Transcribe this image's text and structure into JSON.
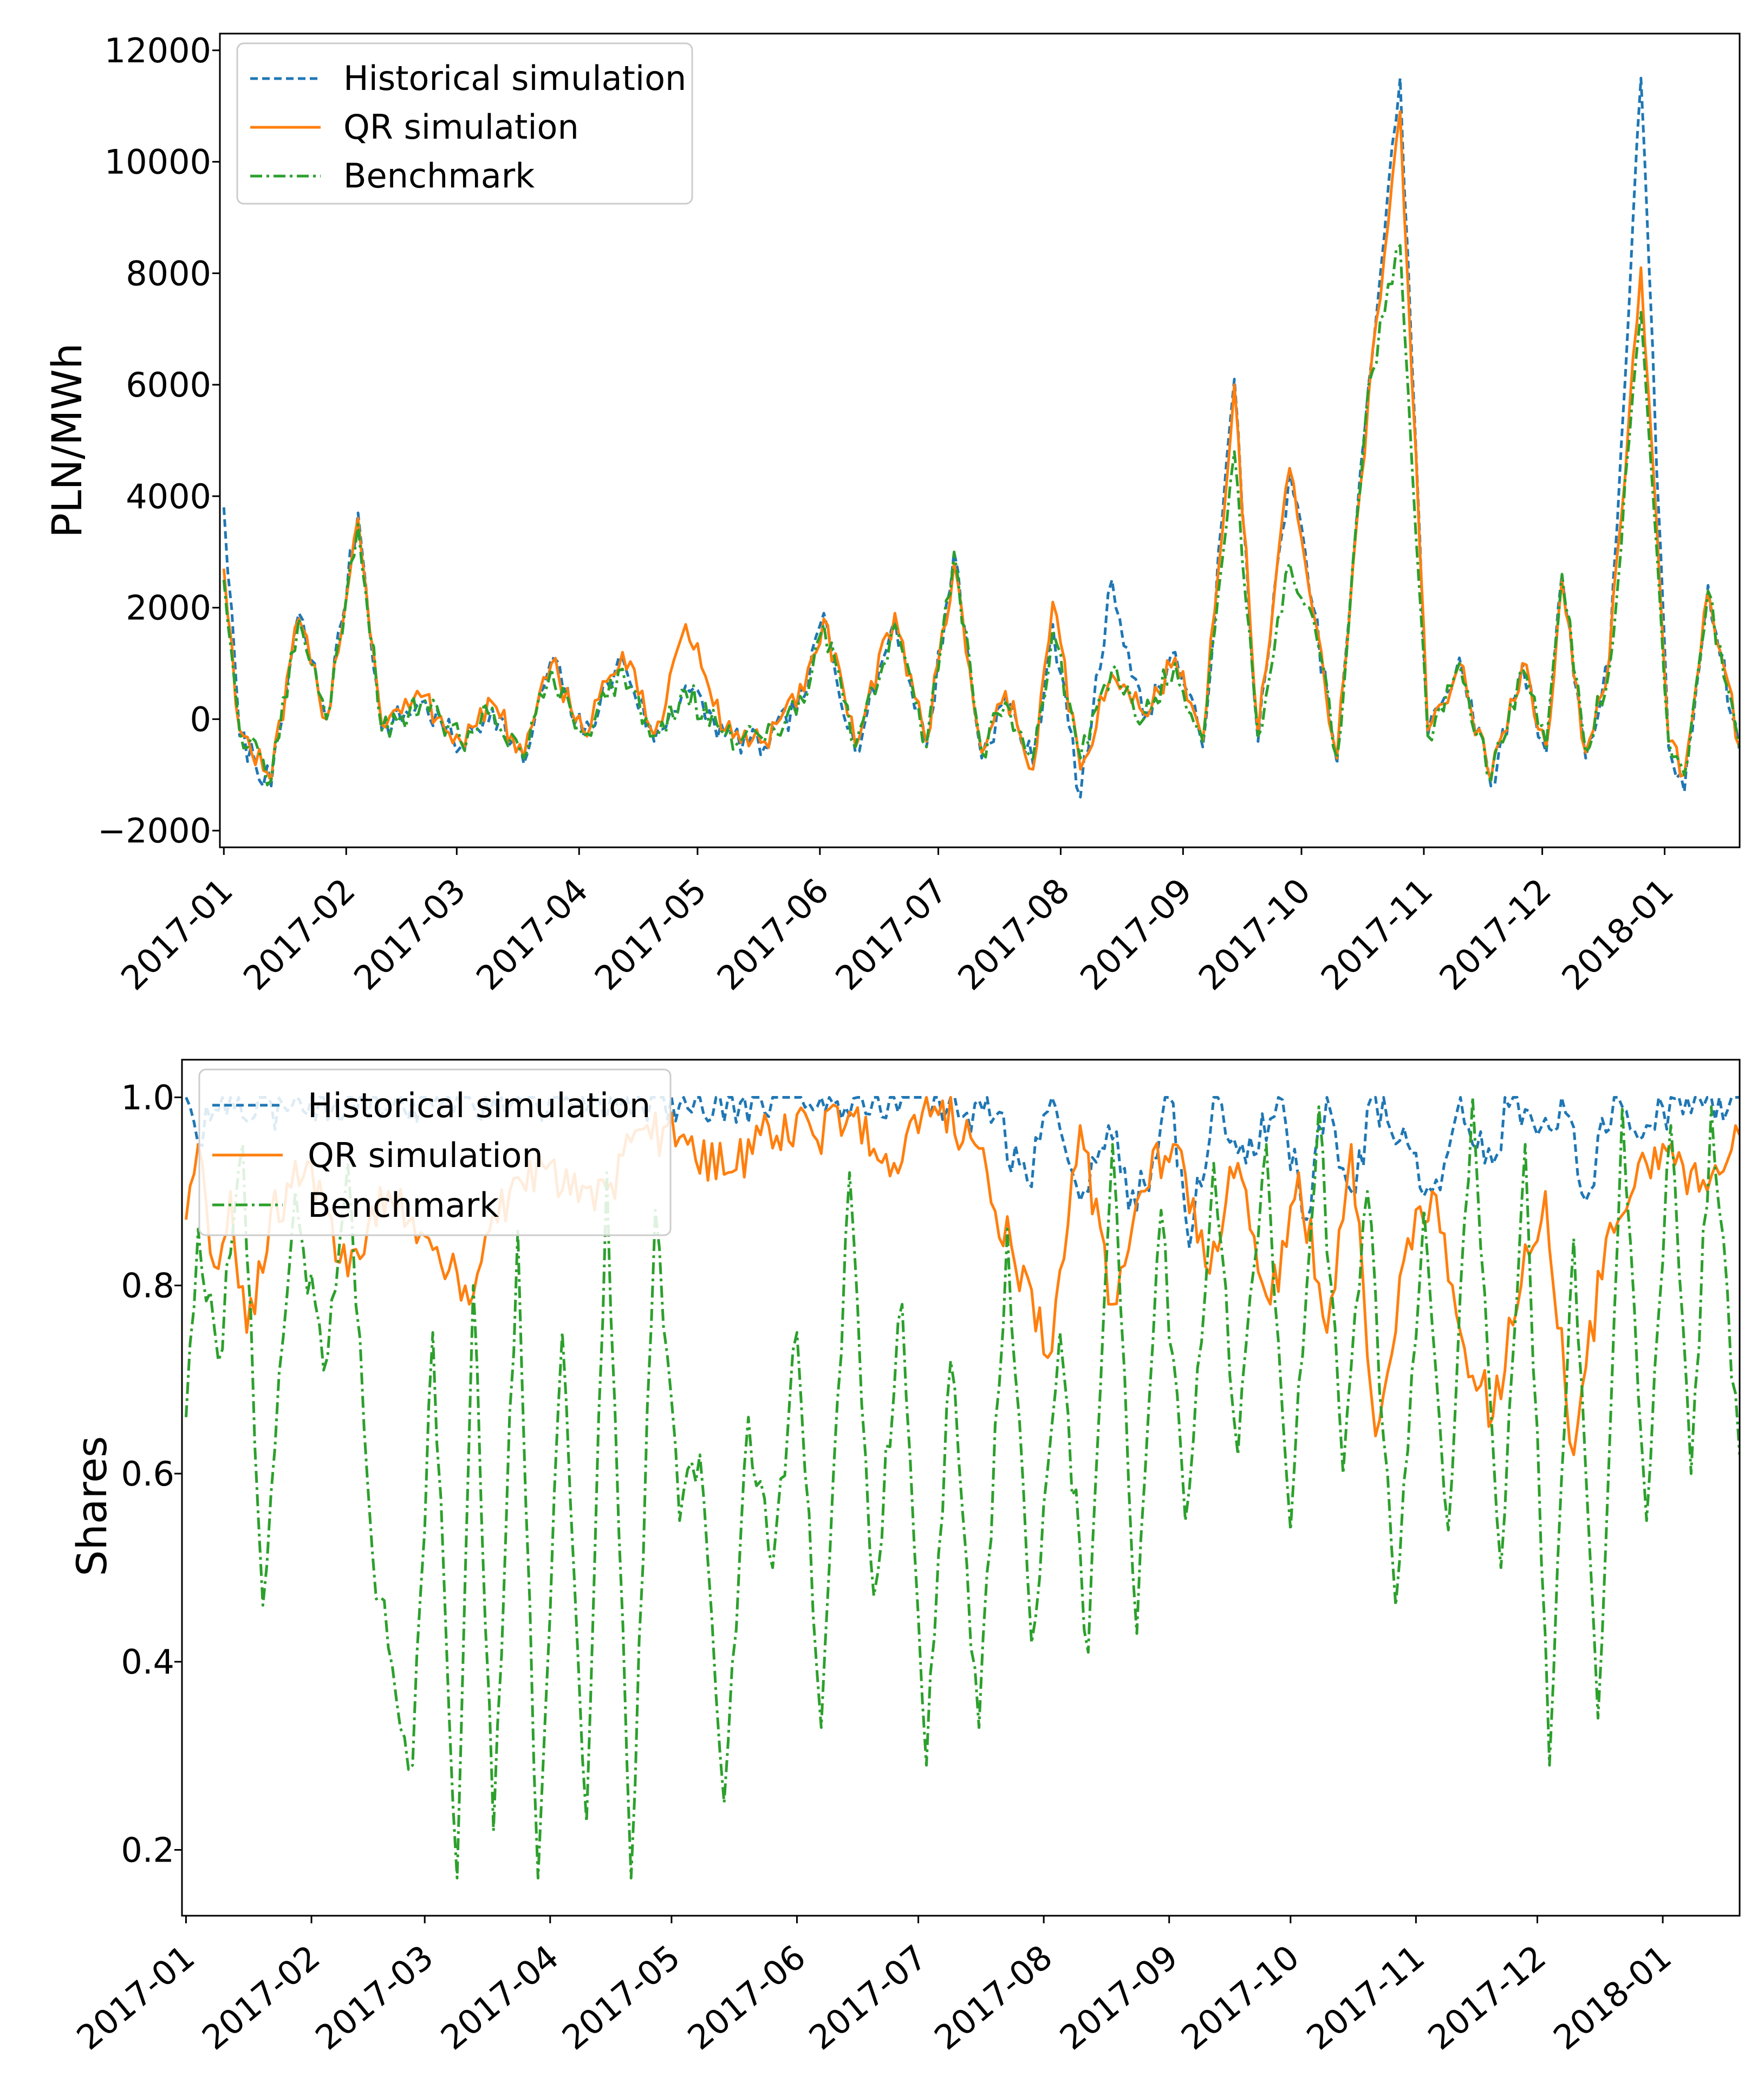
{
  "colors": {
    "historical": "#1f77b4",
    "qr": "#ff7f0e",
    "benchmark": "#2ca02c",
    "frame": "#000000",
    "legend_border": "#cccccc",
    "background": "#ffffff"
  },
  "legend": {
    "items": [
      {
        "label": "Historical simulation",
        "style": "dashed",
        "color_key": "historical"
      },
      {
        "label": "QR simulation",
        "style": "solid",
        "color_key": "qr"
      },
      {
        "label": "Benchmark",
        "style": "dashdot",
        "color_key": "benchmark"
      }
    ],
    "placement": "upper-left"
  },
  "chart_data": [
    {
      "type": "line",
      "ylabel": "PLN/MWh",
      "xlabel": "",
      "xlim": [
        "2016-12-31",
        "2018-01-20"
      ],
      "ylim": [
        -2300,
        12300
      ],
      "yticks": [
        -2000,
        0,
        2000,
        4000,
        6000,
        8000,
        10000,
        12000
      ],
      "ytick_labels": [
        "−2000",
        "0",
        "2000",
        "4000",
        "6000",
        "8000",
        "10000",
        "12000"
      ],
      "xticks": [
        "2017-01-01",
        "2017-02-01",
        "2017-03-01",
        "2017-04-01",
        "2017-05-01",
        "2017-06-01",
        "2017-07-01",
        "2017-08-01",
        "2017-09-01",
        "2017-10-01",
        "2017-11-01",
        "2017-12-01",
        "2018-01-01"
      ],
      "xtick_labels": [
        "2017-01",
        "2017-02",
        "2017-03",
        "2017-04",
        "2017-05",
        "2017-06",
        "2017-07",
        "2017-08",
        "2017-09",
        "2017-10",
        "2017-11",
        "2017-12",
        "2018-01"
      ],
      "series": [
        {
          "name": "Historical simulation",
          "key": "historical",
          "x": [
            "2017-01-01",
            "2017-01-05",
            "2017-01-13",
            "2017-01-20",
            "2017-01-27",
            "2017-02-04",
            "2017-02-10",
            "2017-02-20",
            "2017-03-02",
            "2017-03-10",
            "2017-03-18",
            "2017-03-25",
            "2017-04-02",
            "2017-04-12",
            "2017-04-20",
            "2017-04-28",
            "2017-05-08",
            "2017-05-18",
            "2017-05-28",
            "2017-06-02",
            "2017-06-10",
            "2017-06-20",
            "2017-06-28",
            "2017-07-05",
            "2017-07-12",
            "2017-07-18",
            "2017-07-25",
            "2017-07-30",
            "2017-08-06",
            "2017-08-14",
            "2017-08-22",
            "2017-08-30",
            "2017-09-06",
            "2017-09-14",
            "2017-09-20",
            "2017-09-28",
            "2017-10-04",
            "2017-10-10",
            "2017-10-12",
            "2017-10-18",
            "2017-10-26",
            "2017-11-02",
            "2017-11-10",
            "2017-11-18",
            "2017-11-26",
            "2017-12-02",
            "2017-12-06",
            "2017-12-12",
            "2017-12-18",
            "2017-12-26",
            "2018-01-02",
            "2018-01-06",
            "2018-01-12",
            "2018-01-20"
          ],
          "values": [
            3800,
            -300,
            -1200,
            1900,
            0,
            3700,
            -200,
            300,
            -500,
            200,
            -800,
            1100,
            -300,
            1100,
            -400,
            600,
            -300,
            -500,
            400,
            1900,
            -600,
            1800,
            -500,
            3000,
            -700,
            400,
            -800,
            1700,
            -1400,
            2500,
            0,
            1200,
            -500,
            6100,
            -400,
            4500,
            2000,
            -800,
            1000,
            6000,
            11500,
            -300,
            1100,
            -1200,
            1000,
            -600,
            2600,
            -700,
            1000,
            11500,
            -500,
            -1300,
            2400,
            -600
          ]
        },
        {
          "name": "QR simulation",
          "key": "qr",
          "x": [
            "2017-01-01",
            "2017-01-05",
            "2017-01-13",
            "2017-01-20",
            "2017-01-27",
            "2017-02-04",
            "2017-02-10",
            "2017-02-20",
            "2017-03-02",
            "2017-03-10",
            "2017-03-18",
            "2017-03-25",
            "2017-04-02",
            "2017-04-12",
            "2017-04-20",
            "2017-04-28",
            "2017-05-08",
            "2017-05-18",
            "2017-05-28",
            "2017-06-02",
            "2017-06-10",
            "2017-06-20",
            "2017-06-28",
            "2017-07-05",
            "2017-07-12",
            "2017-07-18",
            "2017-07-25",
            "2017-07-30",
            "2017-08-06",
            "2017-08-14",
            "2017-08-22",
            "2017-08-30",
            "2017-09-06",
            "2017-09-14",
            "2017-09-20",
            "2017-09-28",
            "2017-10-04",
            "2017-10-10",
            "2017-10-12",
            "2017-10-18",
            "2017-10-26",
            "2017-11-02",
            "2017-11-10",
            "2017-11-18",
            "2017-11-26",
            "2017-12-02",
            "2017-12-06",
            "2017-12-12",
            "2017-12-18",
            "2017-12-26",
            "2018-01-02",
            "2018-01-06",
            "2018-01-12",
            "2018-01-20"
          ],
          "values": [
            2700,
            -200,
            -1100,
            1800,
            0,
            3600,
            -100,
            400,
            -400,
            300,
            -700,
            1000,
            -200,
            1200,
            -300,
            1700,
            -200,
            -400,
            500,
            1800,
            -500,
            1900,
            -400,
            2800,
            -600,
            500,
            -900,
            2100,
            -900,
            800,
            100,
            1100,
            -400,
            6000,
            -300,
            4500,
            1900,
            -700,
            900,
            5800,
            10900,
            -200,
            1000,
            -1100,
            1000,
            -500,
            2500,
            -600,
            1100,
            8100,
            -400,
            -1000,
            2300,
            -500
          ]
        },
        {
          "name": "Benchmark",
          "key": "benchmark",
          "x": [
            "2017-01-01",
            "2017-01-05",
            "2017-01-13",
            "2017-01-20",
            "2017-01-27",
            "2017-02-04",
            "2017-02-10",
            "2017-02-20",
            "2017-03-02",
            "2017-03-10",
            "2017-03-18",
            "2017-03-25",
            "2017-04-02",
            "2017-04-12",
            "2017-04-20",
            "2017-04-28",
            "2017-05-08",
            "2017-05-18",
            "2017-05-28",
            "2017-06-02",
            "2017-06-10",
            "2017-06-20",
            "2017-06-28",
            "2017-07-05",
            "2017-07-12",
            "2017-07-18",
            "2017-07-25",
            "2017-07-30",
            "2017-08-06",
            "2017-08-14",
            "2017-08-22",
            "2017-08-30",
            "2017-09-06",
            "2017-09-14",
            "2017-09-20",
            "2017-09-28",
            "2017-10-04",
            "2017-10-10",
            "2017-10-12",
            "2017-10-18",
            "2017-10-26",
            "2017-11-02",
            "2017-11-10",
            "2017-11-18",
            "2017-11-26",
            "2017-12-02",
            "2017-12-06",
            "2017-12-12",
            "2017-12-18",
            "2017-12-26",
            "2018-01-02",
            "2018-01-06",
            "2018-01-12",
            "2018-01-20"
          ],
          "values": [
            2500,
            -200,
            -1100,
            1800,
            0,
            3500,
            -200,
            300,
            -400,
            200,
            -700,
            900,
            -300,
            900,
            -300,
            500,
            -300,
            -400,
            300,
            1700,
            -500,
            1700,
            -500,
            3000,
            -600,
            300,
            -700,
            1600,
            -700,
            900,
            0,
            1000,
            -400,
            4800,
            -300,
            2800,
            1800,
            -700,
            800,
            6000,
            8500,
            -300,
            1000,
            -1100,
            900,
            -500,
            2600,
            -600,
            900,
            7300,
            -400,
            -1000,
            2300,
            -500
          ]
        }
      ]
    },
    {
      "type": "line",
      "ylabel": "Shares",
      "xlabel": "",
      "xlim": [
        "2016-12-31",
        "2018-01-20"
      ],
      "ylim": [
        0.13,
        1.04
      ],
      "yticks": [
        0.2,
        0.4,
        0.6,
        0.8,
        1.0
      ],
      "ytick_labels": [
        "0.2",
        "0.4",
        "0.6",
        "0.8",
        "1.0"
      ],
      "xticks": [
        "2017-01-01",
        "2017-02-01",
        "2017-03-01",
        "2017-04-01",
        "2017-05-01",
        "2017-06-01",
        "2017-07-01",
        "2017-08-01",
        "2017-09-01",
        "2017-10-01",
        "2017-11-01",
        "2017-12-01",
        "2018-01-01"
      ],
      "xtick_labels": [
        "2017-01",
        "2017-02",
        "2017-03",
        "2017-04",
        "2017-05",
        "2017-06",
        "2017-07",
        "2017-08",
        "2017-09",
        "2017-10",
        "2017-11",
        "2017-12",
        "2018-01"
      ],
      "series": [
        {
          "name": "Historical simulation",
          "key": "historical",
          "x": [
            "2017-01-01",
            "2017-01-04",
            "2017-01-10",
            "2017-01-18",
            "2017-01-28",
            "2017-02-10",
            "2017-03-01",
            "2017-04-01",
            "2017-05-01",
            "2017-06-01",
            "2017-07-01",
            "2017-07-20",
            "2017-07-28",
            "2017-08-03",
            "2017-08-10",
            "2017-08-17",
            "2017-08-24",
            "2017-09-01",
            "2017-09-06",
            "2017-09-12",
            "2017-09-20",
            "2017-09-28",
            "2017-10-05",
            "2017-10-10",
            "2017-10-16",
            "2017-10-22",
            "2017-10-30",
            "2017-11-05",
            "2017-11-12",
            "2017-11-18",
            "2017-11-25",
            "2017-12-01",
            "2017-12-07",
            "2017-12-13",
            "2017-12-20",
            "2017-12-28",
            "2018-01-05",
            "2018-01-12",
            "2018-01-20"
          ],
          "values": [
            1.0,
            0.95,
            1.0,
            0.98,
            1.0,
            1.0,
            1.0,
            1.0,
            1.0,
            1.0,
            1.0,
            0.98,
            0.91,
            1.0,
            0.89,
            0.97,
            0.88,
            1.0,
            0.84,
            1.0,
            0.93,
            1.0,
            0.87,
            1.0,
            0.9,
            1.0,
            0.95,
            0.9,
            1.0,
            0.93,
            1.0,
            0.96,
            1.0,
            0.89,
            1.0,
            0.97,
            1.0,
            1.0,
            1.0
          ]
        },
        {
          "name": "QR simulation",
          "key": "qr",
          "x": [
            "2017-01-01",
            "2017-01-04",
            "2017-01-08",
            "2017-01-12",
            "2017-01-16",
            "2017-01-22",
            "2017-02-01",
            "2017-02-10",
            "2017-02-20",
            "2017-03-02",
            "2017-03-12",
            "2017-03-22",
            "2017-04-01",
            "2017-04-12",
            "2017-04-25",
            "2017-05-05",
            "2017-05-15",
            "2017-05-25",
            "2017-06-05",
            "2017-06-15",
            "2017-06-25",
            "2017-07-05",
            "2017-07-15",
            "2017-07-25",
            "2017-08-03",
            "2017-08-10",
            "2017-08-18",
            "2017-08-25",
            "2017-09-02",
            "2017-09-10",
            "2017-09-18",
            "2017-09-26",
            "2017-10-03",
            "2017-10-10",
            "2017-10-16",
            "2017-10-22",
            "2017-10-30",
            "2017-11-05",
            "2017-11-12",
            "2017-11-20",
            "2017-11-27",
            "2017-12-03",
            "2017-12-10",
            "2017-12-18",
            "2017-12-26",
            "2018-01-03",
            "2018-01-10",
            "2018-01-20"
          ],
          "values": [
            0.87,
            0.95,
            0.82,
            0.9,
            0.75,
            0.88,
            0.93,
            0.81,
            0.9,
            0.85,
            0.78,
            0.9,
            0.93,
            0.88,
            0.97,
            0.95,
            0.92,
            0.97,
            0.96,
            0.98,
            0.93,
            0.99,
            0.95,
            0.82,
            0.73,
            0.97,
            0.78,
            0.9,
            0.95,
            0.82,
            0.93,
            0.78,
            0.92,
            0.75,
            0.95,
            0.64,
            0.85,
            0.9,
            0.75,
            0.66,
            0.8,
            0.9,
            0.62,
            0.85,
            0.93,
            0.95,
            0.9,
            0.96
          ]
        },
        {
          "name": "Benchmark",
          "key": "benchmark",
          "x": [
            "2017-01-01",
            "2017-01-04",
            "2017-01-09",
            "2017-01-15",
            "2017-01-20",
            "2017-01-28",
            "2017-02-04",
            "2017-02-10",
            "2017-02-16",
            "2017-02-22",
            "2017-02-26",
            "2017-03-03",
            "2017-03-09",
            "2017-03-13",
            "2017-03-18",
            "2017-03-24",
            "2017-03-29",
            "2017-04-04",
            "2017-04-10",
            "2017-04-15",
            "2017-04-21",
            "2017-04-27",
            "2017-05-03",
            "2017-05-08",
            "2017-05-14",
            "2017-05-20",
            "2017-05-26",
            "2017-06-01",
            "2017-06-07",
            "2017-06-14",
            "2017-06-20",
            "2017-06-27",
            "2017-07-03",
            "2017-07-09",
            "2017-07-16",
            "2017-07-23",
            "2017-07-29",
            "2017-08-05",
            "2017-08-12",
            "2017-08-18",
            "2017-08-24",
            "2017-08-30",
            "2017-09-05",
            "2017-09-12",
            "2017-09-18",
            "2017-09-25",
            "2017-10-01",
            "2017-10-08",
            "2017-10-14",
            "2017-10-20",
            "2017-10-27",
            "2017-11-03",
            "2017-11-09",
            "2017-11-15",
            "2017-11-22",
            "2017-11-28",
            "2017-12-04",
            "2017-12-10",
            "2017-12-16",
            "2017-12-22",
            "2017-12-28",
            "2018-01-03",
            "2018-01-08",
            "2018-01-13",
            "2018-01-20"
          ],
          "values": [
            0.66,
            0.86,
            0.72,
            0.95,
            0.46,
            0.9,
            0.71,
            0.93,
            0.52,
            0.36,
            0.29,
            0.75,
            0.17,
            0.8,
            0.22,
            0.86,
            0.17,
            0.75,
            0.23,
            0.92,
            0.17,
            0.88,
            0.55,
            0.62,
            0.25,
            0.66,
            0.5,
            0.75,
            0.33,
            0.92,
            0.47,
            0.78,
            0.29,
            0.72,
            0.33,
            0.86,
            0.42,
            0.75,
            0.41,
            0.95,
            0.43,
            0.88,
            0.55,
            0.93,
            0.62,
            0.95,
            0.54,
            0.99,
            0.6,
            0.9,
            0.46,
            0.88,
            0.54,
            1.0,
            0.5,
            0.95,
            0.29,
            0.85,
            0.34,
            0.99,
            0.55,
            0.97,
            0.6,
            0.99,
            0.62
          ]
        }
      ]
    }
  ]
}
